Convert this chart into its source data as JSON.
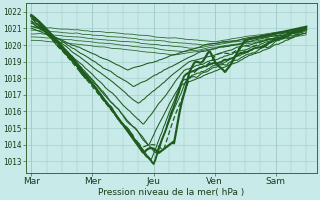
{
  "bg_color": "#c8eae8",
  "grid_color_major": "#a0c8c8",
  "grid_color_minor": "#b8d8d8",
  "line_color": "#1e5c1e",
  "ylabel": "Pression niveau de la mer( hPa )",
  "yticks": [
    1013,
    1014,
    1015,
    1016,
    1017,
    1018,
    1019,
    1020,
    1021,
    1022
  ],
  "ylim": [
    1012.3,
    1022.5
  ],
  "xtick_labels": [
    "Mar",
    "Mer",
    "Jeu",
    "Ven",
    "Sam"
  ],
  "xtick_positions": [
    0,
    24,
    48,
    72,
    96
  ],
  "xlim": [
    -2,
    112
  ]
}
